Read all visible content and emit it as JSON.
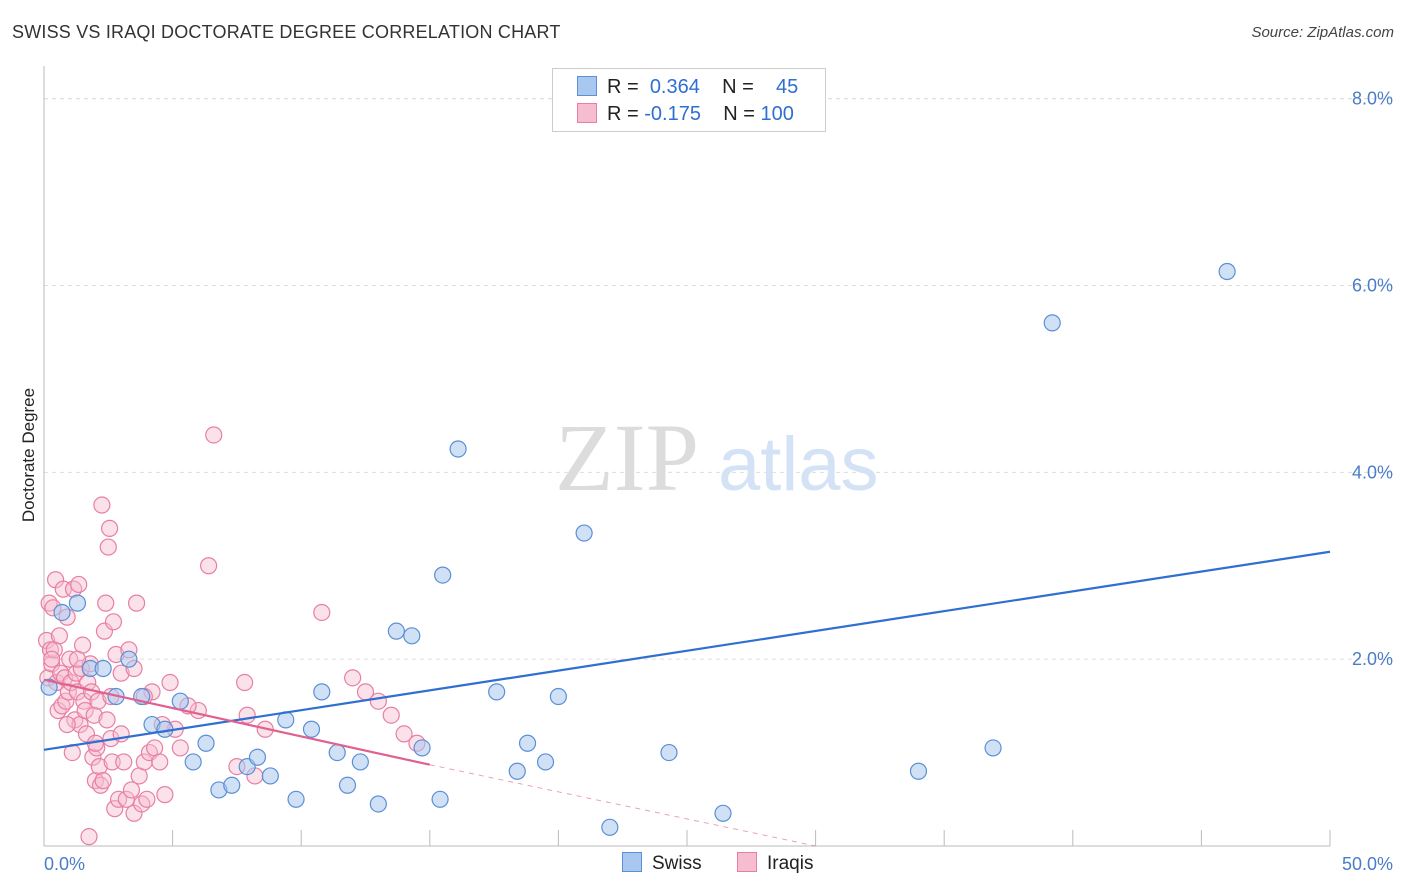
{
  "title": "SWISS VS IRAQI DOCTORATE DEGREE CORRELATION CHART",
  "source": "Source: ZipAtlas.com",
  "watermark": {
    "zip": "ZIP",
    "atlas": "atlas"
  },
  "legend": {
    "swiss": {
      "r_label": "R =",
      "r_value": "0.364",
      "n_label": "N =",
      "n_value": "45"
    },
    "iraqis": {
      "r_label": "R =",
      "r_value": "-0.175",
      "n_label": "N =",
      "n_value": "100"
    }
  },
  "bottom_legend": {
    "swiss": "Swiss",
    "iraqis": "Iraqis"
  },
  "colors": {
    "swiss_fill": "#a9c8ef",
    "swiss_stroke": "#5b8fd6",
    "swiss_line": "#2f6fd1",
    "iraqis_fill": "#f6bcd0",
    "iraqis_stroke": "#e87fa3",
    "iraqis_line": "#e0608f",
    "axis_text": "#4a7cc9",
    "grid": "#dddddd"
  },
  "chart_data": {
    "type": "scatter",
    "title": "SWISS VS IRAQI DOCTORATE DEGREE CORRELATION CHART",
    "xlabel": "",
    "ylabel": "Doctorate Degree",
    "xlim": [
      0,
      50
    ],
    "ylim": [
      0,
      8.2
    ],
    "x_tick_labels": [
      "0.0%",
      "50.0%"
    ],
    "y_ticks": [
      2,
      4,
      6,
      8
    ],
    "y_tick_labels": [
      "2.0%",
      "4.0%",
      "6.0%",
      "8.0%"
    ],
    "grid": "horizontal dashed",
    "legend_position": "top-center",
    "series": [
      {
        "name": "Swiss",
        "points": [
          [
            0.2,
            1.7
          ],
          [
            0.7,
            2.5
          ],
          [
            1.3,
            2.6
          ],
          [
            1.8,
            1.9
          ],
          [
            2.3,
            1.9
          ],
          [
            3.3,
            2.0
          ],
          [
            2.8,
            1.6
          ],
          [
            3.8,
            1.6
          ],
          [
            4.2,
            1.3
          ],
          [
            4.7,
            1.25
          ],
          [
            5.3,
            1.55
          ],
          [
            5.8,
            0.9
          ],
          [
            6.3,
            1.1
          ],
          [
            6.8,
            0.6
          ],
          [
            7.3,
            0.65
          ],
          [
            7.9,
            0.85
          ],
          [
            8.3,
            0.95
          ],
          [
            8.8,
            0.75
          ],
          [
            9.4,
            1.35
          ],
          [
            9.8,
            0.5
          ],
          [
            10.4,
            1.25
          ],
          [
            10.8,
            1.65
          ],
          [
            11.4,
            1.0
          ],
          [
            11.8,
            0.65
          ],
          [
            12.3,
            0.9
          ],
          [
            13.0,
            0.45
          ],
          [
            13.7,
            2.3
          ],
          [
            14.3,
            2.25
          ],
          [
            14.7,
            1.05
          ],
          [
            15.4,
            0.5
          ],
          [
            15.5,
            2.9
          ],
          [
            16.1,
            4.25
          ],
          [
            17.6,
            1.65
          ],
          [
            18.4,
            0.8
          ],
          [
            18.8,
            1.1
          ],
          [
            19.5,
            0.9
          ],
          [
            20.0,
            1.6
          ],
          [
            21.0,
            3.35
          ],
          [
            22.0,
            0.2
          ],
          [
            24.3,
            1.0
          ],
          [
            26.4,
            0.35
          ],
          [
            34.0,
            0.8
          ],
          [
            36.9,
            1.05
          ],
          [
            39.2,
            5.6
          ],
          [
            46.0,
            6.15
          ]
        ]
      },
      {
        "name": "Iraqis",
        "points": [
          [
            0.1,
            2.2
          ],
          [
            0.15,
            1.8
          ],
          [
            0.2,
            2.6
          ],
          [
            0.25,
            2.1
          ],
          [
            0.3,
            1.95
          ],
          [
            0.35,
            2.55
          ],
          [
            0.4,
            2.1
          ],
          [
            0.45,
            2.85
          ],
          [
            0.5,
            1.75
          ],
          [
            0.55,
            1.45
          ],
          [
            0.6,
            2.25
          ],
          [
            0.65,
            1.85
          ],
          [
            0.7,
            1.5
          ],
          [
            0.75,
            2.75
          ],
          [
            0.8,
            1.8
          ],
          [
            0.85,
            1.55
          ],
          [
            0.9,
            2.45
          ],
          [
            0.95,
            1.65
          ],
          [
            1.0,
            2.0
          ],
          [
            1.05,
            1.75
          ],
          [
            1.1,
            1.0
          ],
          [
            1.15,
            2.75
          ],
          [
            1.2,
            1.35
          ],
          [
            1.25,
            1.85
          ],
          [
            1.3,
            1.65
          ],
          [
            1.35,
            2.8
          ],
          [
            1.4,
            1.3
          ],
          [
            1.45,
            1.9
          ],
          [
            1.5,
            2.15
          ],
          [
            1.55,
            1.55
          ],
          [
            1.6,
            1.45
          ],
          [
            1.65,
            1.2
          ],
          [
            1.7,
            1.75
          ],
          [
            1.75,
            0.1
          ],
          [
            1.8,
            1.95
          ],
          [
            1.85,
            1.65
          ],
          [
            1.9,
            0.95
          ],
          [
            1.95,
            1.4
          ],
          [
            2.0,
            0.7
          ],
          [
            2.05,
            1.05
          ],
          [
            2.1,
            1.55
          ],
          [
            2.15,
            0.85
          ],
          [
            2.2,
            0.65
          ],
          [
            2.25,
            3.65
          ],
          [
            2.3,
            0.7
          ],
          [
            2.35,
            2.3
          ],
          [
            2.4,
            2.6
          ],
          [
            2.45,
            1.35
          ],
          [
            2.5,
            3.2
          ],
          [
            2.55,
            3.4
          ],
          [
            2.6,
            1.6
          ],
          [
            2.65,
            0.9
          ],
          [
            2.7,
            2.4
          ],
          [
            2.75,
            0.4
          ],
          [
            2.8,
            2.05
          ],
          [
            2.9,
            0.5
          ],
          [
            3.0,
            1.85
          ],
          [
            3.1,
            0.9
          ],
          [
            3.2,
            0.5
          ],
          [
            3.3,
            2.1
          ],
          [
            3.4,
            0.6
          ],
          [
            3.5,
            0.35
          ],
          [
            3.6,
            2.6
          ],
          [
            3.7,
            0.75
          ],
          [
            3.8,
            0.45
          ],
          [
            3.9,
            0.9
          ],
          [
            4.0,
            0.5
          ],
          [
            4.1,
            1.0
          ],
          [
            4.2,
            1.65
          ],
          [
            4.3,
            1.05
          ],
          [
            4.5,
            0.9
          ],
          [
            4.7,
            0.55
          ],
          [
            4.9,
            1.75
          ],
          [
            5.1,
            1.25
          ],
          [
            5.3,
            1.05
          ],
          [
            6.0,
            1.45
          ],
          [
            6.4,
            3.0
          ],
          [
            6.6,
            4.4
          ],
          [
            7.5,
            0.85
          ],
          [
            7.8,
            1.75
          ],
          [
            7.9,
            1.4
          ],
          [
            8.2,
            0.75
          ],
          [
            8.6,
            1.25
          ],
          [
            10.8,
            2.5
          ],
          [
            12.0,
            1.8
          ],
          [
            12.5,
            1.65
          ],
          [
            13.0,
            1.55
          ],
          [
            13.5,
            1.4
          ],
          [
            14.0,
            1.2
          ],
          [
            14.5,
            1.1
          ],
          [
            0.3,
            2.0
          ],
          [
            0.9,
            1.3
          ],
          [
            1.3,
            2.0
          ],
          [
            2.0,
            1.1
          ],
          [
            2.6,
            1.15
          ],
          [
            3.0,
            1.2
          ],
          [
            3.5,
            1.9
          ],
          [
            3.9,
            1.6
          ],
          [
            4.6,
            1.3
          ],
          [
            5.6,
            1.5
          ]
        ]
      }
    ],
    "trendlines": [
      {
        "name": "Swiss",
        "x": [
          0,
          50
        ],
        "y": [
          1.03,
          3.15
        ]
      },
      {
        "name": "Iraqis",
        "x": [
          0,
          15
        ],
        "y": [
          1.78,
          0.87
        ],
        "dashed_extension_to": [
          30,
          0
        ]
      }
    ]
  }
}
